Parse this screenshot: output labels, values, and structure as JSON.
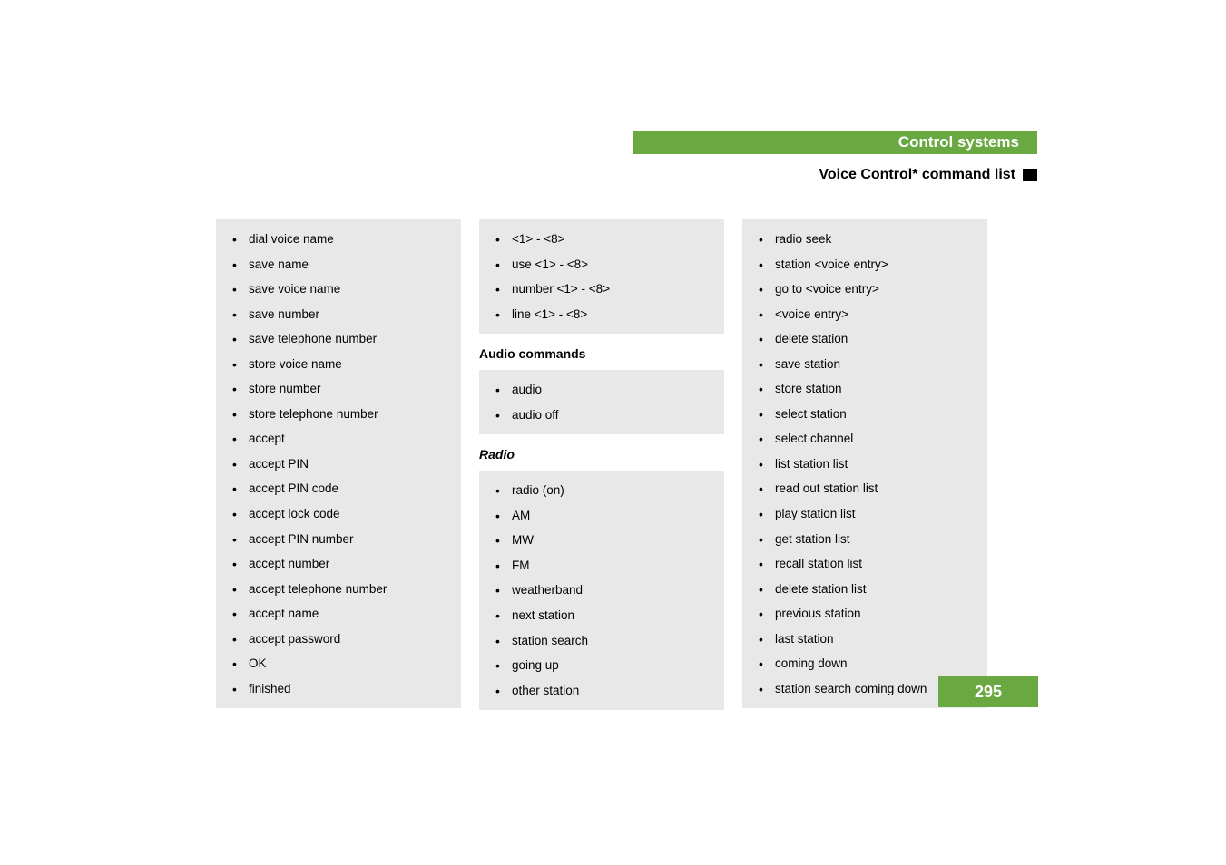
{
  "header": {
    "title": "Control systems",
    "subtitle": "Voice Control* command list",
    "accent_color": "#6aa842",
    "text_color": "#ffffff"
  },
  "page_number": "295",
  "columns": {
    "col1": {
      "list1": [
        "dial voice name",
        "save name",
        "save voice name",
        "save number",
        "save telephone number",
        "store voice name",
        "store number",
        "store telephone number",
        "accept",
        "accept PIN",
        "accept PIN code",
        "accept lock code",
        "accept PIN number",
        "accept number",
        "accept telephone number",
        "accept name",
        "accept password",
        "OK",
        "finished"
      ]
    },
    "col2": {
      "list1": [
        "<1> - <8>",
        "use <1> - <8>",
        "number <1> - <8>",
        "line <1> - <8>"
      ],
      "heading1": "Audio commands",
      "list2": [
        "audio",
        "audio off"
      ],
      "subheading1": "Radio",
      "list3": [
        "radio (on)",
        "AM",
        "MW",
        "FM",
        "weatherband",
        "next station",
        "station search",
        "going up",
        "other station"
      ]
    },
    "col3": {
      "list1": [
        "radio seek",
        "station <voice entry>",
        "go to <voice entry>",
        "<voice entry>",
        "delete station",
        "save station",
        "store station",
        "select station",
        "select channel",
        "list station list",
        "read out station list",
        "play station list",
        "get station list",
        "recall station list",
        "delete station list",
        "previous station",
        "last station",
        "coming down",
        "station search coming down"
      ]
    }
  },
  "styling": {
    "box_bg": "#e8e8e8",
    "body_bg": "#ffffff",
    "text_color": "#000000",
    "body_fontsize": 13.5,
    "heading_fontsize": 14,
    "header_fontsize": 17,
    "subtitle_fontsize": 16,
    "pagenum_fontsize": 18
  }
}
